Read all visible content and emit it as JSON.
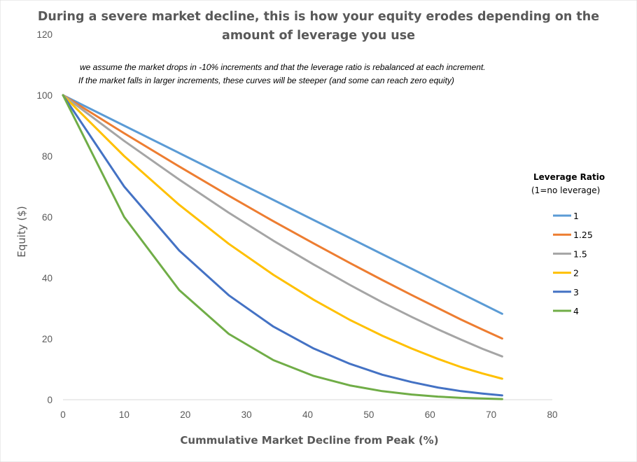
{
  "chart_data": {
    "type": "line",
    "title": [
      "During a severe market decline, this is how your equity erodes depending on the",
      "amount of leverage you use"
    ],
    "note": [
      "we assume the market drops in -10% increments and that the leverage ratio is rebalanced at each increment.",
      "If the market falls in larger increments, these curves will be steeper (and some can reach zero equity)"
    ],
    "xlabel": "Cummulative Market Decline from Peak (%)",
    "ylabel": "Equity ($)",
    "xlim": [
      0,
      80
    ],
    "ylim": [
      0,
      120
    ],
    "x_ticks": [
      "0",
      "10",
      "20",
      "30",
      "40",
      "50",
      "60",
      "70",
      "80"
    ],
    "y_ticks": [
      "0",
      "20",
      "40",
      "60",
      "80",
      "100",
      "120"
    ],
    "grid": false,
    "legend": {
      "position": "right",
      "title": "Leverage Ratio",
      "subtitle": "(1=no leverage)"
    },
    "series": [
      {
        "name": "1",
        "color": "#5B9BD5",
        "x": [
          0,
          10,
          19,
          27.1,
          34.4,
          41,
          46.9,
          52.2,
          57,
          61.3,
          65.1,
          68.6,
          71.8
        ],
        "y": [
          100,
          90,
          81,
          72.9,
          65.6,
          59,
          53.1,
          47.8,
          43,
          38.7,
          34.9,
          31.4,
          28.2
        ]
      },
      {
        "name": "1.25",
        "color": "#ED7D31",
        "x": [
          0,
          10,
          19,
          27.1,
          34.4,
          41,
          46.9,
          52.2,
          57,
          61.3,
          65.1,
          68.6,
          71.8
        ],
        "y": [
          100,
          87.5,
          76.6,
          67,
          58.6,
          51.3,
          44.9,
          39.3,
          34.4,
          30.1,
          26.3,
          23,
          20.1
        ]
      },
      {
        "name": "1.5",
        "color": "#A5A5A5",
        "x": [
          0,
          10,
          19,
          27.1,
          34.4,
          41,
          46.9,
          52.2,
          57,
          61.3,
          65.1,
          68.6,
          71.8
        ],
        "y": [
          100,
          85,
          72.3,
          61.4,
          52.2,
          44.4,
          37.7,
          32,
          27.2,
          23.1,
          19.7,
          16.7,
          14.2
        ]
      },
      {
        "name": "2",
        "color": "#FFC000",
        "x": [
          0,
          10,
          19,
          27.1,
          34.4,
          41,
          46.9,
          52.2,
          57,
          61.3,
          65.1,
          68.6,
          71.8
        ],
        "y": [
          100,
          80,
          64,
          51.2,
          41,
          32.8,
          26.2,
          21,
          16.8,
          13.4,
          10.7,
          8.6,
          6.9
        ]
      },
      {
        "name": "3",
        "color": "#4472C4",
        "x": [
          0,
          10,
          19,
          27.1,
          34.4,
          41,
          46.9,
          52.2,
          57,
          61.3,
          65.1,
          68.6,
          71.8
        ],
        "y": [
          100,
          70,
          49,
          34.3,
          24,
          16.8,
          11.8,
          8.2,
          5.8,
          4,
          2.8,
          2,
          1.4
        ]
      },
      {
        "name": "4",
        "color": "#70AD47",
        "x": [
          0,
          10,
          19,
          27.1,
          34.4,
          41,
          46.9,
          52.2,
          57,
          61.3,
          65.1,
          68.6,
          71.8
        ],
        "y": [
          100,
          60,
          36,
          21.6,
          13,
          7.8,
          4.7,
          2.8,
          1.7,
          1,
          0.6,
          0.4,
          0.2
        ]
      }
    ]
  }
}
